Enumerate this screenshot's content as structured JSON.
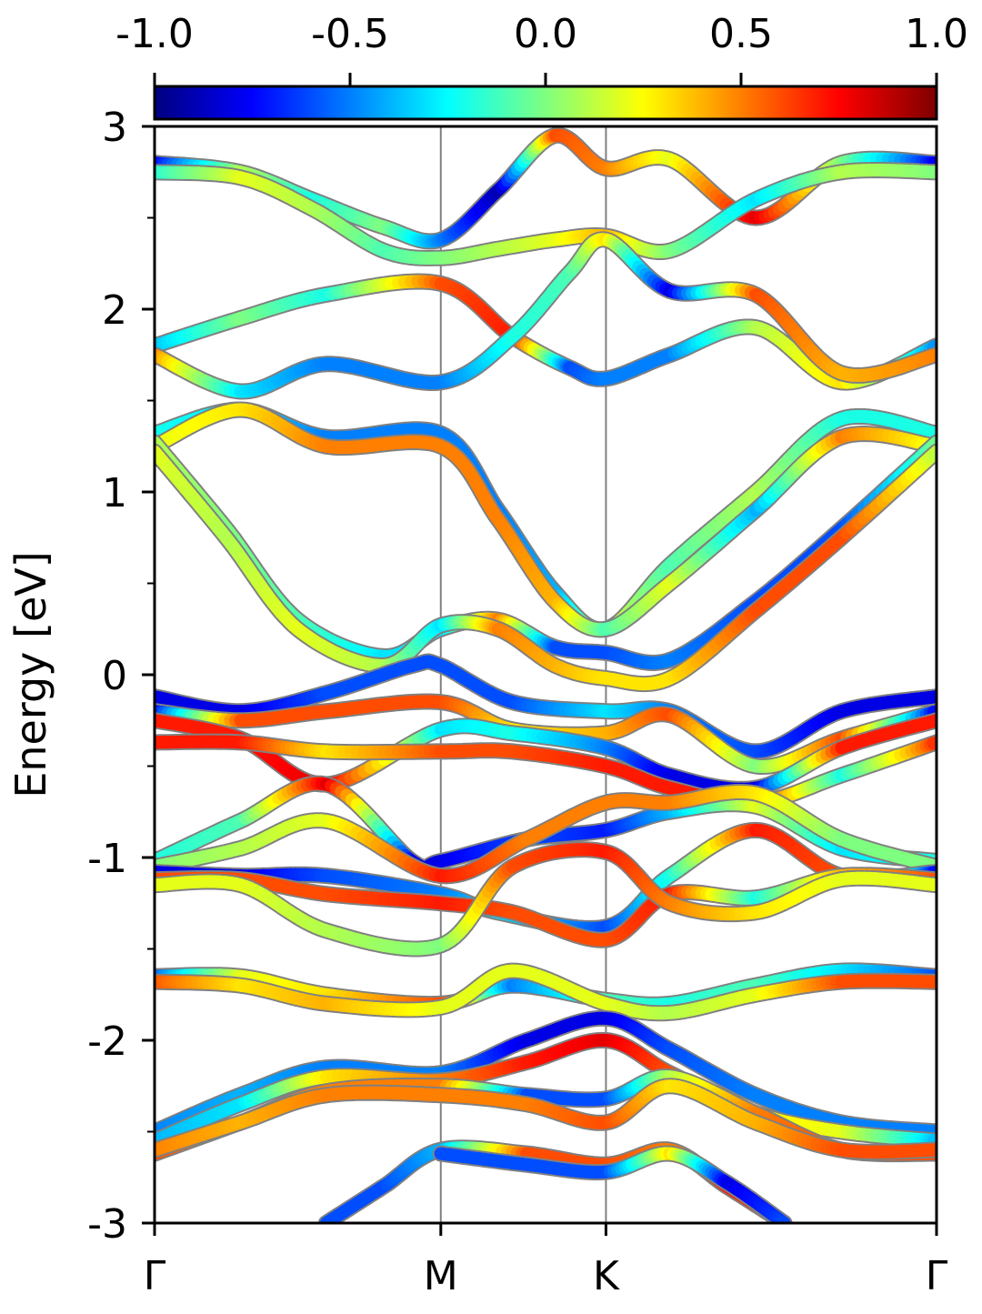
{
  "chart_data": {
    "type": "line",
    "title": "",
    "xlabel": "",
    "ylabel": "Energy [eV]",
    "ylim": [
      -3,
      3
    ],
    "y_ticks": [
      "3",
      "2",
      "1",
      "0",
      "-1",
      "-2",
      "-3"
    ],
    "y_tick_values": [
      3,
      2,
      1,
      0,
      -1,
      -2,
      -3
    ],
    "y_minor_ticks": [
      2.5,
      1.5,
      0.5,
      -0.5,
      -1.5,
      -2.5
    ],
    "k_path": [
      {
        "label": "Γ",
        "k": 0.0
      },
      {
        "label": "M",
        "k": 1.0
      },
      {
        "label": "K",
        "k": 1.577
      },
      {
        "label": "Γ",
        "k": 2.732
      }
    ],
    "xlim": [
      0,
      2.732
    ],
    "colorbar": {
      "range": [
        -1.0,
        1.0
      ],
      "ticks": [
        "-1.0",
        "-0.5",
        "0.0",
        "0.5",
        "1.0"
      ],
      "tick_values": [
        -1.0,
        -0.5,
        0.0,
        0.5,
        1.0
      ],
      "colormap": "jet",
      "colors": [
        "#00007f",
        "#0000ff",
        "#007fff",
        "#00ffff",
        "#7fff7f",
        "#ffff00",
        "#ff7f00",
        "#ff0000",
        "#7f0000"
      ]
    },
    "grid": false,
    "band_edge_color": "#808080",
    "k_line_color": "#808080",
    "series": [
      {
        "x": [
          0,
          0.3,
          0.55,
          0.8,
          1.0,
          1.2,
          1.4,
          1.577,
          1.8,
          2.1,
          2.4,
          2.732
        ],
        "y": [
          2.8,
          2.75,
          2.6,
          2.45,
          2.38,
          2.65,
          2.95,
          2.77,
          2.82,
          2.5,
          2.8,
          2.8
        ],
        "spin": [
          -0.8,
          0.1,
          -0.2,
          0.0,
          -0.5,
          -0.9,
          0.6,
          0.5,
          0.2,
          0.8,
          0.0,
          -0.8
        ]
      },
      {
        "x": [
          0,
          0.3,
          0.55,
          0.8,
          1.0,
          1.2,
          1.4,
          1.577,
          1.8,
          2.1,
          2.4,
          2.732
        ],
        "y": [
          2.75,
          2.72,
          2.55,
          2.32,
          2.28,
          2.33,
          2.38,
          2.4,
          2.32,
          2.6,
          2.75,
          2.75
        ],
        "spin": [
          -0.2,
          0.2,
          0.1,
          -0.1,
          0.0,
          0.1,
          0.2,
          0.4,
          0.0,
          -0.3,
          0.1,
          0.0
        ]
      },
      {
        "x": [
          0,
          0.3,
          0.6,
          1.0,
          1.25,
          1.45,
          1.577,
          1.8,
          2.1,
          2.4,
          2.732
        ],
        "y": [
          1.8,
          1.95,
          2.08,
          2.14,
          1.85,
          1.68,
          1.62,
          1.75,
          1.9,
          1.6,
          1.8
        ],
        "spin": [
          -0.4,
          0.0,
          -0.2,
          0.6,
          0.7,
          -0.6,
          -0.5,
          -0.5,
          0.1,
          0.3,
          -0.5
        ]
      },
      {
        "x": [
          0,
          0.3,
          0.6,
          1.0,
          1.25,
          1.45,
          1.577,
          1.8,
          2.1,
          2.4,
          2.732
        ],
        "y": [
          1.75,
          1.55,
          1.7,
          1.6,
          1.85,
          2.2,
          2.38,
          2.1,
          2.08,
          1.65,
          1.75
        ],
        "spin": [
          0.5,
          -0.3,
          -0.5,
          -0.5,
          -0.2,
          -0.1,
          0.3,
          -0.8,
          0.6,
          0.4,
          0.5
        ]
      },
      {
        "x": [
          0,
          0.3,
          0.6,
          1.0,
          1.2,
          1.4,
          1.577,
          1.8,
          2.1,
          2.4,
          2.732
        ],
        "y": [
          1.32,
          1.45,
          1.3,
          1.32,
          0.9,
          0.45,
          0.25,
          0.6,
          1.0,
          1.4,
          1.32
        ],
        "spin": [
          -0.2,
          -0.3,
          -0.5,
          -0.5,
          -0.5,
          -0.4,
          0.2,
          -0.1,
          0.1,
          -0.2,
          -0.2
        ]
      },
      {
        "x": [
          0,
          0.3,
          0.6,
          1.0,
          1.2,
          1.4,
          1.577,
          1.8,
          2.1,
          2.4,
          2.732
        ],
        "y": [
          1.25,
          1.45,
          1.25,
          1.25,
          0.85,
          0.4,
          0.25,
          0.5,
          0.9,
          1.3,
          1.25
        ],
        "spin": [
          0.2,
          0.3,
          0.5,
          0.5,
          0.5,
          0.4,
          -0.1,
          0.2,
          -0.4,
          0.5,
          0.2
        ]
      },
      {
        "x": [
          0,
          0.25,
          0.5,
          0.8,
          1.0,
          1.2,
          1.4,
          1.577,
          1.8,
          2.1,
          2.4,
          2.732
        ],
        "y": [
          1.27,
          0.8,
          0.3,
          0.1,
          0.25,
          0.3,
          0.15,
          0.12,
          0.08,
          0.4,
          0.8,
          1.27
        ],
        "spin": [
          0.1,
          0.0,
          -0.1,
          -0.3,
          -0.3,
          0.5,
          -0.6,
          -0.6,
          -0.5,
          -0.6,
          -0.6,
          0.0
        ]
      },
      {
        "x": [
          0,
          0.25,
          0.5,
          0.8,
          1.0,
          1.2,
          1.4,
          1.577,
          1.8,
          2.1,
          2.4,
          2.732
        ],
        "y": [
          1.22,
          0.75,
          0.25,
          0.05,
          0.27,
          0.25,
          0.05,
          -0.02,
          -0.02,
          0.35,
          0.75,
          1.22
        ],
        "spin": [
          0.2,
          0.1,
          0.2,
          0.1,
          -0.3,
          0.5,
          0.4,
          0.3,
          0.3,
          0.6,
          0.6,
          0.1
        ]
      },
      {
        "x": [
          0,
          0.3,
          0.6,
          0.9,
          1.0,
          1.25,
          1.577,
          1.8,
          2.1,
          2.4,
          2.732
        ],
        "y": [
          -0.12,
          -0.2,
          -0.1,
          0.05,
          0.05,
          -0.15,
          -0.2,
          -0.2,
          -0.42,
          -0.2,
          -0.12
        ],
        "spin": [
          -0.8,
          -0.8,
          -0.6,
          -0.6,
          -0.6,
          -0.6,
          -0.3,
          -0.5,
          -0.6,
          -0.8,
          -0.8
        ]
      },
      {
        "x": [
          0,
          0.3,
          0.6,
          1.0,
          1.25,
          1.577,
          1.8,
          2.1,
          2.4,
          2.732
        ],
        "y": [
          -0.2,
          -0.25,
          -0.2,
          -0.15,
          -0.3,
          -0.32,
          -0.22,
          -0.5,
          -0.35,
          -0.2
        ],
        "spin": [
          -0.8,
          0.6,
          0.6,
          0.6,
          0.3,
          0.4,
          0.6,
          0.0,
          0.6,
          -0.8
        ]
      },
      {
        "x": [
          0,
          0.3,
          0.6,
          1.0,
          1.25,
          1.577,
          1.8,
          2.1,
          2.4,
          2.732
        ],
        "y": [
          -0.25,
          -0.35,
          -0.6,
          -0.3,
          -0.32,
          -0.4,
          -0.55,
          -0.62,
          -0.4,
          -0.25
        ],
        "spin": [
          0.7,
          0.7,
          0.8,
          -0.3,
          -0.2,
          -0.5,
          -0.8,
          -0.8,
          0.7,
          0.7
        ]
      },
      {
        "x": [
          0,
          0.3,
          0.6,
          1.0,
          1.25,
          1.577,
          1.8,
          2.1,
          2.4,
          2.732
        ],
        "y": [
          -0.37,
          -0.37,
          -0.42,
          -0.42,
          -0.42,
          -0.5,
          -0.62,
          -0.7,
          -0.55,
          -0.37
        ],
        "spin": [
          0.7,
          0.7,
          0.3,
          0.6,
          0.6,
          0.7,
          0.7,
          0.7,
          -0.2,
          0.7
        ]
      },
      {
        "x": [
          0,
          0.3,
          0.6,
          0.9,
          1.0,
          1.3,
          1.577,
          1.8,
          2.1,
          2.4,
          2.732
        ],
        "y": [
          -1.02,
          -0.8,
          -0.6,
          -1.02,
          -1.02,
          -0.9,
          -0.85,
          -0.75,
          -0.72,
          -0.95,
          -1.02
        ],
        "spin": [
          -0.2,
          -0.1,
          0.8,
          -0.8,
          -0.8,
          -0.6,
          -0.7,
          -0.4,
          0.2,
          -0.3,
          -0.2
        ]
      },
      {
        "x": [
          0,
          0.3,
          0.6,
          1.0,
          1.3,
          1.577,
          1.8,
          2.1,
          2.4,
          2.732
        ],
        "y": [
          -1.05,
          -0.95,
          -0.8,
          -1.1,
          -0.9,
          -0.7,
          -0.7,
          -0.65,
          -0.9,
          -1.05
        ],
        "spin": [
          0.0,
          0.1,
          0.2,
          0.7,
          0.5,
          0.5,
          0.5,
          0.3,
          0.0,
          0.0
        ]
      },
      {
        "x": [
          0,
          0.3,
          0.6,
          1.0,
          1.2,
          1.577,
          1.8,
          2.1,
          2.4,
          2.732
        ],
        "y": [
          -1.08,
          -1.1,
          -1.1,
          -1.2,
          -1.3,
          -1.38,
          -1.1,
          -0.85,
          -1.1,
          -1.08
        ],
        "spin": [
          -0.8,
          -0.8,
          -0.6,
          -0.5,
          -0.3,
          -0.6,
          -0.2,
          0.7,
          0.6,
          -0.8
        ]
      },
      {
        "x": [
          0,
          0.3,
          0.6,
          1.0,
          1.25,
          1.577,
          1.8,
          2.1,
          2.4,
          2.732
        ],
        "y": [
          -1.12,
          -1.12,
          -1.2,
          -1.25,
          -1.3,
          -1.45,
          -1.2,
          -1.22,
          -1.1,
          -1.12
        ],
        "spin": [
          0.6,
          0.6,
          0.6,
          0.7,
          0.6,
          0.6,
          0.7,
          -0.2,
          0.4,
          0.6
        ]
      },
      {
        "x": [
          0,
          0.3,
          0.6,
          1.0,
          1.25,
          1.577,
          1.8,
          2.1,
          2.4,
          2.732
        ],
        "y": [
          -1.15,
          -1.15,
          -1.4,
          -1.48,
          -1.05,
          -0.97,
          -1.25,
          -1.3,
          -1.12,
          -1.15
        ],
        "spin": [
          0.2,
          0.2,
          0.1,
          0.0,
          0.6,
          0.7,
          0.5,
          0.3,
          0.2,
          0.2
        ]
      },
      {
        "x": [
          0,
          0.3,
          0.6,
          1.0,
          1.25,
          1.577,
          1.8,
          2.1,
          2.4,
          2.732
        ],
        "y": [
          -1.65,
          -1.65,
          -1.75,
          -1.8,
          -1.7,
          -1.78,
          -1.8,
          -1.7,
          -1.62,
          -1.65
        ],
        "spin": [
          -0.6,
          0.2,
          0.3,
          0.6,
          -0.5,
          -0.1,
          -0.2,
          -0.1,
          -0.3,
          -0.6
        ]
      },
      {
        "x": [
          0,
          0.3,
          0.6,
          1.0,
          1.25,
          1.577,
          1.8,
          2.1,
          2.4,
          2.732
        ],
        "y": [
          -1.68,
          -1.7,
          -1.8,
          -1.82,
          -1.62,
          -1.8,
          -1.85,
          -1.75,
          -1.68,
          -1.68
        ],
        "spin": [
          0.6,
          0.3,
          0.4,
          0.2,
          0.2,
          0.2,
          0.1,
          0.2,
          0.6,
          0.6
        ]
      },
      {
        "x": [
          0,
          0.3,
          0.6,
          1.0,
          1.3,
          1.577,
          1.8,
          2.1,
          2.4,
          2.732
        ],
        "y": [
          -2.5,
          -2.3,
          -2.15,
          -2.18,
          -2.0,
          -1.88,
          -2.05,
          -2.3,
          -2.45,
          -2.5
        ],
        "spin": [
          -0.5,
          -0.4,
          -0.5,
          -0.5,
          -0.8,
          -0.8,
          -0.6,
          -0.5,
          -0.5,
          -0.5
        ]
      },
      {
        "x": [
          0,
          0.3,
          0.6,
          1.0,
          1.3,
          1.577,
          1.8,
          2.1,
          2.4,
          2.732
        ],
        "y": [
          -2.55,
          -2.35,
          -2.2,
          -2.22,
          -2.12,
          -2.0,
          -2.18,
          -2.4,
          -2.5,
          -2.55
        ],
        "spin": [
          -0.4,
          -0.3,
          0.3,
          0.5,
          0.7,
          0.8,
          0.6,
          0.3,
          0.2,
          -0.4
        ]
      },
      {
        "x": [
          0,
          0.3,
          0.6,
          1.0,
          1.3,
          1.577,
          1.8,
          2.1,
          2.4,
          2.732
        ],
        "y": [
          -2.62,
          -2.45,
          -2.28,
          -2.25,
          -2.3,
          -2.32,
          -2.2,
          -2.4,
          -2.6,
          -2.62
        ],
        "spin": [
          0.6,
          0.5,
          0.5,
          0.5,
          -0.6,
          -0.6,
          0.1,
          0.5,
          0.6,
          0.6
        ]
      },
      {
        "x": [
          0,
          0.3,
          0.6,
          1.0,
          1.3,
          1.577,
          1.8,
          2.1,
          2.4,
          2.732
        ],
        "y": [
          -2.6,
          -2.45,
          -2.3,
          -2.3,
          -2.35,
          -2.45,
          -2.25,
          -2.45,
          -2.6,
          -2.6
        ],
        "spin": [
          0.5,
          0.4,
          0.5,
          0.5,
          0.5,
          0.6,
          0.3,
          0.4,
          0.6,
          0.6
        ]
      },
      {
        "x": [
          0.6,
          0.8,
          1.0,
          1.3,
          1.577,
          1.8,
          2.0,
          2.2
        ],
        "y": [
          -3.0,
          -2.8,
          -2.6,
          -2.62,
          -2.68,
          -2.6,
          -2.8,
          -3.0
        ],
        "spin": [
          -0.6,
          -0.6,
          -0.4,
          0.6,
          0.6,
          0.5,
          0.7,
          0.6
        ]
      },
      {
        "x": [
          1.0,
          1.3,
          1.577,
          1.8,
          2.0,
          2.2
        ],
        "y": [
          -2.62,
          -2.68,
          -2.72,
          -2.62,
          -2.78,
          -3.0
        ],
        "spin": [
          -0.6,
          -0.6,
          -0.6,
          0.3,
          -0.8,
          -0.6
        ]
      }
    ]
  }
}
